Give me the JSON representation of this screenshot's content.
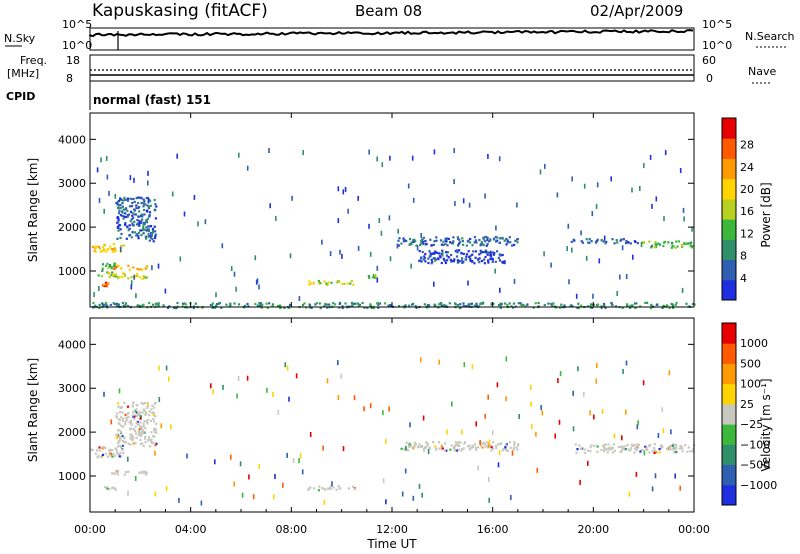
{
  "header": {
    "station": "Kapuskasing (fitACF)",
    "beam": "Beam 08",
    "date": "02/Apr/2009"
  },
  "status_panels": {
    "nsky_label": "N.Sky",
    "nsky_ticks": [
      "10^5",
      "10^0"
    ],
    "nsearch_label": "N.Search",
    "freq_label": "Freq.",
    "freq_unit": "[MHz]",
    "freq_ticks": [
      "18",
      "8"
    ],
    "nave_label": "Nave",
    "nave_ticks": [
      "60",
      "0"
    ],
    "cpid_label": "CPID",
    "cpid_text": "normal (fast) 151"
  },
  "x_axis": {
    "label": "Time UT",
    "ticks": [
      "00:00",
      "04:00",
      "08:00",
      "12:00",
      "16:00",
      "20:00",
      "00:00"
    ]
  },
  "colors": {
    "power_scale": [
      "#1f2fe0",
      "#2f5fb0",
      "#2f8f6a",
      "#3cb83c",
      "#b8d020",
      "#ffd400",
      "#ff9a00",
      "#ff5a00",
      "#e80000"
    ],
    "velocity_scale": [
      "#1f2fe0",
      "#2f5fb0",
      "#2f8f6a",
      "#3cb83c",
      "#c8c8c0",
      "#ffd400",
      "#ff9a00",
      "#ff5a00",
      "#e80000"
    ],
    "ground_scatter": "#c8c8c0"
  },
  "chart_data": [
    {
      "type": "heatmap",
      "title": "",
      "xlabel": "",
      "ylabel": "Slant Range [km]",
      "xlim": [
        "00:00",
        "24:00"
      ],
      "ylim": [
        180,
        4600
      ],
      "yticks": [
        "1000",
        "2000",
        "3000",
        "4000"
      ],
      "colorbar": {
        "label": "Power [dB]",
        "ticks": [
          "4",
          "8",
          "12",
          "16",
          "20",
          "24",
          "28"
        ]
      },
      "regions": [
        {
          "t": [
            0.0,
            1.3
          ],
          "r": [
            1450,
            1650
          ],
          "level": 5
        },
        {
          "t": [
            0.3,
            1.0
          ],
          "r": [
            900,
            1200
          ],
          "level": 3
        },
        {
          "t": [
            0.4,
            0.8
          ],
          "r": [
            650,
            780
          ],
          "level": 7
        },
        {
          "t": [
            0.9,
            2.3
          ],
          "r": [
            1050,
            1150
          ],
          "level": 6
        },
        {
          "t": [
            0.7,
            2.3
          ],
          "r": [
            850,
            980
          ],
          "level": 4
        },
        {
          "t": [
            1.0,
            2.6
          ],
          "r": [
            1700,
            2700
          ],
          "level": 1
        },
        {
          "t": [
            8.6,
            10.5
          ],
          "r": [
            700,
            800
          ],
          "level": 4
        },
        {
          "t": [
            11.0,
            11.4
          ],
          "r": [
            850,
            950
          ],
          "level": 3
        },
        {
          "t": [
            12.2,
            17.0
          ],
          "r": [
            1600,
            1800
          ],
          "level": 1
        },
        {
          "t": [
            13.0,
            16.5
          ],
          "r": [
            1200,
            1500
          ],
          "level": 0
        },
        {
          "t": [
            19.0,
            21.8
          ],
          "r": [
            1650,
            1750
          ],
          "level": 1
        },
        {
          "t": [
            21.8,
            24.0
          ],
          "r": [
            1550,
            1700
          ],
          "level": 3
        },
        {
          "t": [
            0.0,
            24.0
          ],
          "r": [
            180,
            300
          ],
          "level": 2
        }
      ]
    },
    {
      "type": "heatmap",
      "title": "",
      "xlabel": "Time UT",
      "ylabel": "Slant Range [km]",
      "xlim": [
        "00:00",
        "24:00"
      ],
      "ylim": [
        180,
        4600
      ],
      "yticks": [
        "1000",
        "2000",
        "3000",
        "4000"
      ],
      "colorbar": {
        "label": "Velocity [m s⁻¹]",
        "ticks": [
          "1000",
          "500",
          "100",
          "25",
          "−25",
          "−100",
          "−500",
          "−1000"
        ]
      },
      "regions": [
        {
          "t": [
            0.0,
            1.3
          ],
          "r": [
            1450,
            1700
          ],
          "level": 4
        },
        {
          "t": [
            0.4,
            1.0
          ],
          "r": [
            700,
            780
          ],
          "level": 4
        },
        {
          "t": [
            0.8,
            2.3
          ],
          "r": [
            1050,
            1150
          ],
          "level": 4
        },
        {
          "t": [
            1.0,
            2.6
          ],
          "r": [
            1700,
            2700
          ],
          "level": 4
        },
        {
          "t": [
            8.6,
            10.5
          ],
          "r": [
            700,
            800
          ],
          "level": 4
        },
        {
          "t": [
            12.2,
            17.0
          ],
          "r": [
            1600,
            1800
          ],
          "level": 4
        },
        {
          "t": [
            19.0,
            24.0
          ],
          "r": [
            1550,
            1750
          ],
          "level": 4
        }
      ]
    }
  ]
}
